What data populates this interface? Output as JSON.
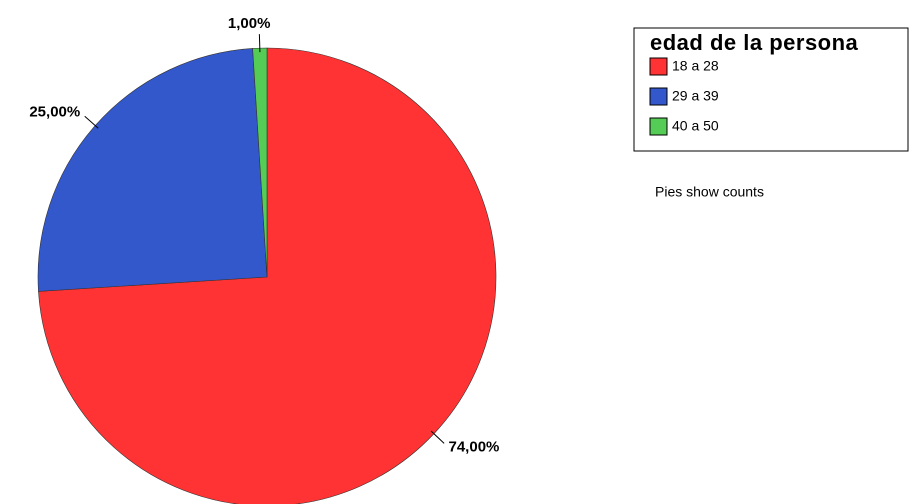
{
  "chart_data": {
    "type": "pie",
    "categories": [
      "18 a 28",
      "29 a 39",
      "40 a 50"
    ],
    "values": [
      74,
      25,
      1
    ],
    "value_labels": [
      "74,00%",
      "25,00%",
      "1,00%"
    ],
    "colors": [
      "#ff3333",
      "#3358cc",
      "#55cc55"
    ],
    "legend_title": "edad de la persona",
    "note": "Pies show counts"
  }
}
